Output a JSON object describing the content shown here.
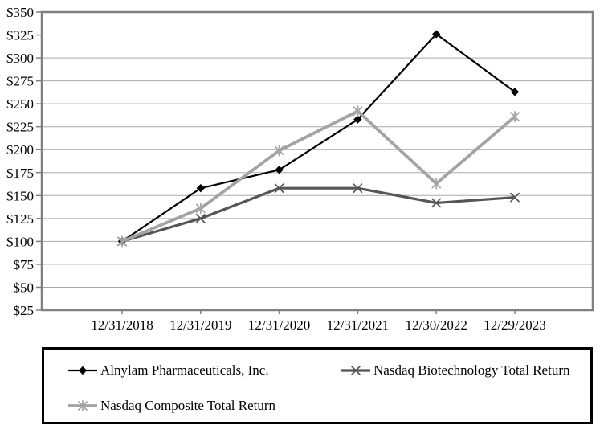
{
  "chart_data": {
    "type": "line",
    "title": "",
    "x_categories": [
      "12/31/2018",
      "12/31/2019",
      "12/31/2020",
      "12/31/2021",
      "12/30/2022",
      "12/29/2023"
    ],
    "series": [
      {
        "name": "Alnylam Pharmaceuticals, Inc.",
        "marker": "diamond",
        "color": "#000000",
        "line_width": 2.2,
        "values": [
          100,
          158,
          178,
          233,
          326,
          263
        ]
      },
      {
        "name": "Nasdaq Biotechnology Total Return",
        "marker": "x",
        "color": "#555555",
        "line_width": 3.2,
        "values": [
          100,
          125,
          158,
          158,
          142,
          148
        ]
      },
      {
        "name": "Nasdaq Composite Total Return",
        "marker": "asterisk",
        "color": "#a3a3a3",
        "line_width": 3.8,
        "values": [
          100,
          136,
          199,
          242,
          163,
          236
        ]
      }
    ],
    "y_axis": {
      "min": 25,
      "max": 350,
      "step": 25,
      "tick_labels": [
        "$25",
        "$50",
        "$75",
        "$100",
        "$125",
        "$150",
        "$175",
        "$200",
        "$225",
        "$250",
        "$275",
        "$300",
        "$325",
        "$350"
      ]
    },
    "grid": true,
    "legend_position": "bottom-box",
    "colors": {
      "axis": "#808080",
      "gridline": "#a9a9a9",
      "legend_border": "#000000",
      "background": "#ffffff",
      "text": "#000000"
    }
  }
}
